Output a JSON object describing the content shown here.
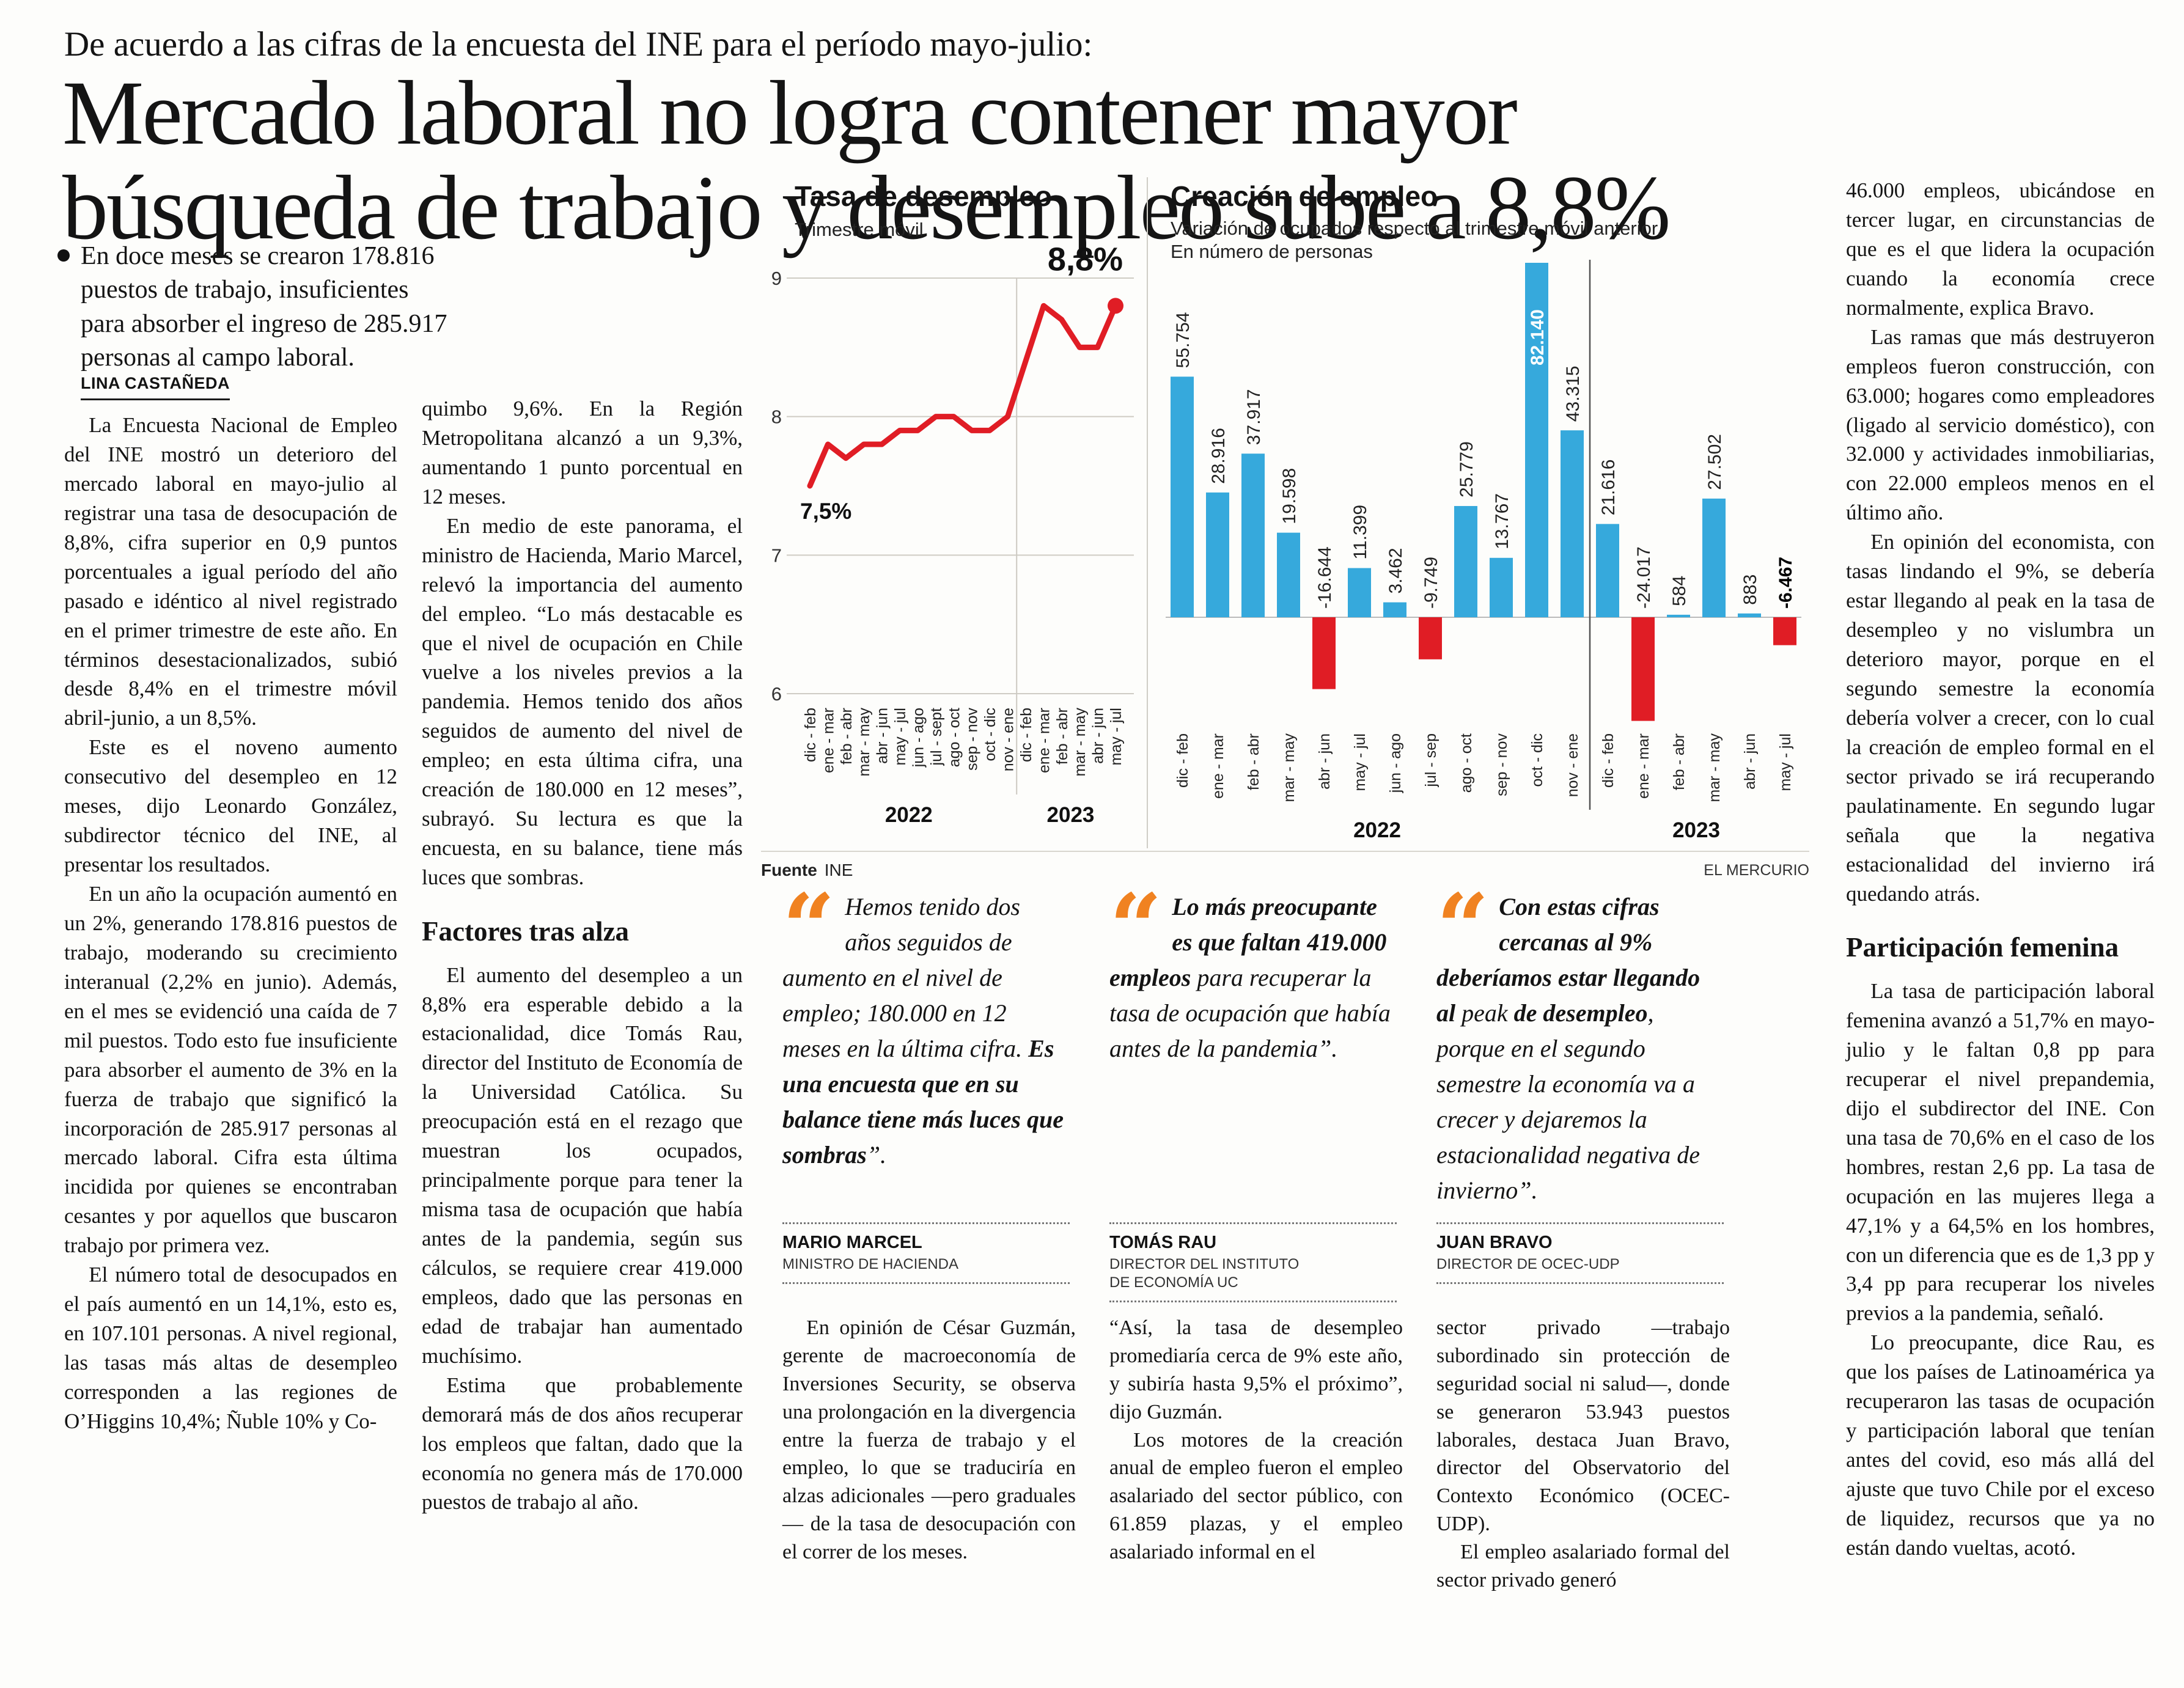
{
  "kicker": "De acuerdo a las cifras de la encuesta del INE para el período mayo-julio:",
  "headline": {
    "line1": "Mercado laboral no logra contener mayor",
    "line2": "búsqueda de trabajo y desempleo sube a 8,8%"
  },
  "deck": "En doce meses se crearon 178.816 puestos de trabajo, insuficientes para absorber el ingreso de 285.917 personas al campo laboral.",
  "byline": "LINA CASTAÑEDA",
  "colors": {
    "red": "#e01d25",
    "blue": "#36a9dc",
    "orange": "#f08221",
    "text": "#141414"
  },
  "col1": {
    "paras": [
      "La Encuesta Nacional de Empleo del INE mostró un deterioro del mercado laboral en mayo-julio al registrar una tasa de desocupación de 8,8%, cifra superior en 0,9 puntos porcentuales a igual período del año pasado e idéntico al nivel registrado en el primer trimestre de este año. En términos desestacionalizados, subió desde 8,4% en el trimestre móvil abril-junio, a un 8,5%.",
      "Este es el noveno aumento consecutivo del desempleo en 12 meses, dijo Leonardo González, subdirector técnico del INE, al presentar los resultados.",
      "En un año la ocupación aumentó en un 2%, generando 178.816 puestos de trabajo, moderando su crecimiento interanual (2,2% en junio). Además, en el mes se evidenció una caída de 7 mil puestos. Todo esto fue insuficiente para absorber el aumento de 3% en la fuerza de trabajo que significó la incorporación de 285.917 personas al mercado laboral. Cifra esta última incidida por quienes se encontraban cesantes y por aquellos que buscaron trabajo por primera vez.",
      "El número total de desocupados en el país aumentó en un 14,1%, esto es, en 107.101 personas. A nivel regional, las tasas más altas de desempleo corresponden a las regiones de O’Higgins 10,4%; Ñuble 10% y Co-"
    ]
  },
  "col2": {
    "paras1": [
      "quimbo 9,6%. En la Región Metropolitana alcanzó a un 9,3%, aumentando 1 punto porcentual en 12 meses.",
      "En medio de este panorama, el ministro de Hacienda, Mario Marcel, relevó la importancia del aumento del empleo. “Lo más destacable es que el nivel de ocupación en Chile vuelve a los niveles previos a la pandemia. Hemos tenido dos años seguidos de aumento del nivel de empleo; en esta última cifra, una creación de 180.000 en 12 meses”, subrayó. Su lectura es que la encuesta, en su balance, tiene más luces que sombras."
    ],
    "subhead": "Factores tras alza",
    "paras2": [
      "El aumento del desempleo a un 8,8% era esperable debido a la estacionalidad, dice Tomás Rau, director del Instituto de Economía de la Universidad Católica. Su preocupación está en el rezago que muestran los ocupados, principalmente porque para tener la misma tasa de ocupación que había antes de la pandemia, según sus cálculos, se requiere crear 419.000 empleos, dado que las personas en edad de trabajar han aumentado muchísimo.",
      "Estima que probablemente demorará más de dos años recuperar los empleos que faltan, dado que la economía no genera más de 170.000 puestos de trabajo al año."
    ]
  },
  "right_col": {
    "paras1": [
      "46.000 empleos, ubicándose en tercer lugar, en circunstancias de que es el que lidera la ocupación cuando la economía crece normalmente, explica Bravo.",
      "Las ramas que más destruyeron empleos fueron construcción, con 63.000; hogares como empleadores (ligado al servicio doméstico), con 32.000 y actividades inmobiliarias, con 22.000 empleos menos en el último año.",
      "En opinión del economista, con tasas lindando el 9%, se debería estar llegando al peak en la tasa de desempleo y no vislumbra un deterioro mayor, porque en el segundo semestre la economía debería volver a crecer, con lo cual la creación de empleo formal en el sector privado se irá recuperando paulatinamente. En segundo lugar señala que la negativa estacionalidad del invierno irá quedando atrás."
    ],
    "subhead": "Participación femenina",
    "paras2": [
      "La tasa de participación laboral femenina avanzó a 51,7% en mayo-julio y le faltan 0,8 pp para recuperar el nivel prepandemia, dijo el subdirector del INE. Con una tasa de 70,6% en el caso de los hombres, restan 2,6 pp. La tasa de ocupación en las mujeres llega a 47,1% y a 64,5% en los hombres, con un diferencia que es de 1,3 pp y 3,4 pp para recuperar los niveles previos a la pandemia, señaló.",
      "Lo preocupante, dice Rau, es que los países de Latinoamérica ya recuperaron las tasas de ocupación y participación laboral que tenían antes del covid, eso más allá del ajuste que tuvo Chile por el exceso de liquidez, recursos que ya no están dando vueltas, acotó."
    ]
  },
  "bottom_cols": {
    "a": [
      "En opinión de César Guzmán, gerente de macroeconomía de Inversiones Security, se observa una prolongación en la divergencia entre la fuerza de trabajo y el empleo, lo que se traduciría en alzas adicionales —pero graduales— de la tasa de desocupación con el correr de los meses."
    ],
    "b": [
      "“Así, la tasa de desempleo promediaría cerca de 9% este año, y subiría hasta 9,5% el próximo”, dijo Guzmán.",
      "Los motores de la creación anual de empleo fueron el empleo asalariado del sector público, con 61.859 plazas, y el empleo asalariado informal en el"
    ],
    "c": [
      "sector privado —trabajo subordinado sin protección de seguridad social ni salud—, donde se generaron 53.943 puestos laborales, destaca Juan Bravo, director del Observatorio del Contexto Económico (OCEC-UDP).",
      "El empleo asalariado formal del sector privado generó"
    ]
  },
  "quotes": [
    {
      "segments": [
        {
          "t": "Hemos tenido dos años seguidos de aumento en el nivel de empleo; 180.000 en 12 meses en la última cifra. ",
          "b": false
        },
        {
          "t": "Es una encuesta que en su balance tiene más luces que sombras",
          "b": true
        },
        {
          "t": "”.",
          "b": false
        }
      ],
      "name": "MARIO MARCEL",
      "role": "MINISTRO DE HACIENDA"
    },
    {
      "segments": [
        {
          "t": "Lo más preocupante es que faltan 419.000 empleos ",
          "b": true
        },
        {
          "t": "para recuperar la tasa de ocupación que había antes de la pandemia”.",
          "b": false
        }
      ],
      "name": "TOMÁS RAU",
      "role": "DIRECTOR DEL INSTITUTO DE ECONOMÍA UC"
    },
    {
      "segments": [
        {
          "t": "Con estas cifras cercanas al 9% deberíamos estar llegando al ",
          "b": true
        },
        {
          "t": "peak ",
          "b": false
        },
        {
          "t": "de desempleo",
          "b": true
        },
        {
          "t": ", porque en el segundo semestre la economía va a crecer y dejaremos la estacionalidad negativa de invierno”.",
          "b": false
        }
      ],
      "name": "JUAN BRAVO",
      "role": "DIRECTOR DE OCEC-UDP"
    }
  ],
  "source": {
    "label": "Fuente",
    "value": "INE"
  },
  "credit": "EL MERCURIO",
  "chart_data": [
    {
      "type": "line",
      "title": "Tasa de desempleo",
      "subtitle": "Trimestre móvil",
      "x": [
        "dic - feb",
        "ene - mar",
        "feb - abr",
        "mar - may",
        "abr - jun",
        "may - jul",
        "jun - ago",
        "jul - sept",
        "ago - oct",
        "sep - nov",
        "oct - dic",
        "nov - ene",
        "dic - feb",
        "ene - mar",
        "feb - abr",
        "mar - may",
        "abr - jun",
        "may - jul"
      ],
      "values": [
        7.5,
        7.8,
        7.7,
        7.8,
        7.8,
        7.9,
        7.9,
        8.0,
        8.0,
        7.9,
        7.9,
        8.0,
        8.4,
        8.8,
        8.7,
        8.5,
        8.5,
        8.8
      ],
      "yticks": [
        6,
        7,
        8,
        9
      ],
      "ylim": [
        6,
        9
      ],
      "unit": "%",
      "start_label": "7,5%",
      "end_label": "8,8%",
      "year_spans": [
        {
          "label": "2022",
          "from": 0,
          "to": 11
        },
        {
          "label": "2023",
          "from": 12,
          "to": 17
        }
      ]
    },
    {
      "type": "bar",
      "title": "Creación de empleo",
      "subtitle_line1": "Variación de ocupados respecto al trimestre móvil anterior.",
      "subtitle_line2": "En número de personas",
      "x": [
        "dic - feb",
        "ene - mar",
        "feb - abr",
        "mar - may",
        "abr - jun",
        "may - jul",
        "jun - ago",
        "jul - sep",
        "ago - oct",
        "sep - nov",
        "oct - dic",
        "nov - ene",
        "dic - feb",
        "ene - mar",
        "feb - abr",
        "mar - may",
        "abr - jun",
        "may - jul"
      ],
      "values": [
        55754,
        28916,
        37917,
        19598,
        -16644,
        11399,
        3462,
        -9749,
        25779,
        13767,
        82140,
        43315,
        21616,
        -24017,
        584,
        27502,
        883,
        -6467
      ],
      "labels": [
        "55.754",
        "28.916",
        "37.917",
        "19.598",
        "-16.644",
        "11.399",
        "3.462",
        "-9.749",
        "25.779",
        "13.767",
        "82.140",
        "43.315",
        "21.616",
        "-24.017",
        "584",
        "27.502",
        "883",
        "-6.467"
      ],
      "inside_label_index": 10,
      "bold_label_index": 17,
      "year_spans": [
        {
          "label": "2022",
          "from": 0,
          "to": 11
        },
        {
          "label": "2023",
          "from": 12,
          "to": 17
        }
      ]
    }
  ]
}
